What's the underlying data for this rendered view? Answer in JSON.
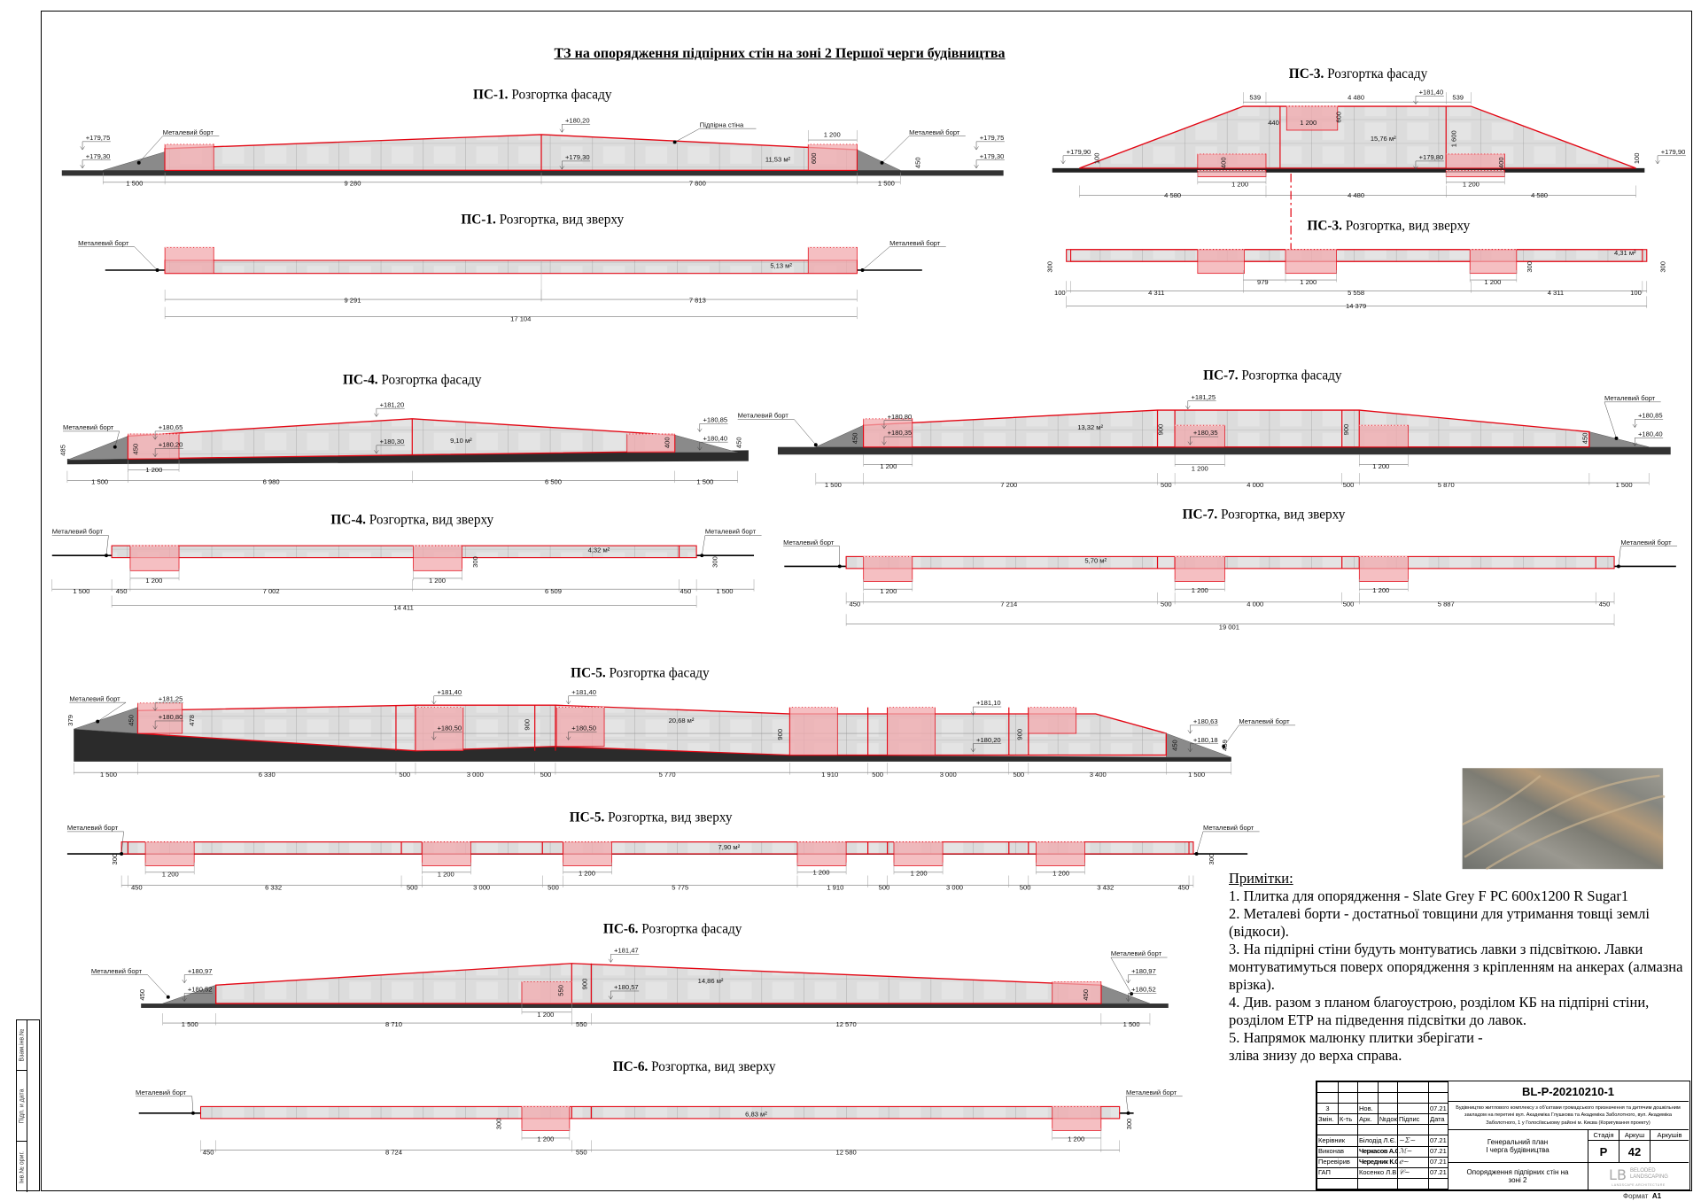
{
  "sheet": {
    "title": "ТЗ на опорядження підпірних стін на зоні 2 Першої черги будівництва",
    "side_stamps": [
      "Взам.інв.№",
      "Підп. и дата",
      "Інв.№ ориг."
    ],
    "format_label": "Формат",
    "format_value": "A1"
  },
  "colors": {
    "outline_red": "#e30613",
    "highlight_pink": "#f2a9ad",
    "tile_grey": "#dcdcdc",
    "ground_dark": "#2b2b2b",
    "slope_grey": "#8a8a8a"
  },
  "drawings": [
    {
      "title_bold": "ПС-1.",
      "title_rest": " Розгортка фасаду",
      "labels": [
        "+179,75",
        "+179,30",
        "Металевий борт",
        "+180,20",
        "+179,30",
        "Підпірна стіна",
        "1 200",
        "Металевий борт",
        "+179,75",
        "+179,30",
        "11,53 м²",
        "600",
        "450",
        "1 500",
        "9 280",
        "7 800",
        "1 500"
      ]
    },
    {
      "title_bold": "ПС-1.",
      "title_rest": " Розгортка, вид зверху",
      "labels": [
        "Металевий борт",
        "Металевий борт",
        "5,13 м²",
        "9 291",
        "7 813",
        "17 104"
      ]
    },
    {
      "title_bold": "ПС-3.",
      "title_rest": " Розгортка фасаду",
      "labels": [
        "539",
        "4 480",
        "+181,40",
        "539",
        "440",
        "1 200",
        "600",
        "15,76 м²",
        "1 600",
        "+179,90",
        "100",
        "400",
        "+179,80",
        "400",
        "100",
        "+179,90",
        "1 200",
        "1 200",
        "4 580",
        "4 480",
        "4 580"
      ]
    },
    {
      "title_bold": "ПС-3.",
      "title_rest": " Розгортка, вид зверху",
      "labels": [
        "300",
        "4,31 м²",
        "300",
        "300",
        "979",
        "1 200",
        "1 200",
        "100",
        "4 311",
        "5 558",
        "4 311",
        "100",
        "14 379"
      ]
    },
    {
      "title_bold": "ПС-4.",
      "title_rest": " Розгортка фасаду",
      "labels": [
        "Металевий борт",
        "485",
        "450",
        "+180,65",
        "+180,20",
        "+181,20",
        "+180,30",
        "9,10 м²",
        "400",
        "+180,85",
        "+180,40",
        "450",
        "1 200",
        "1 500",
        "6 980",
        "6 500",
        "1 500"
      ]
    },
    {
      "title_bold": "ПС-4.",
      "title_rest": " Розгортка, вид зверху",
      "labels": [
        "Металевий борт",
        "Металевий борт",
        "4,32 м²",
        "300",
        "300",
        "1 200",
        "1 200",
        "1 500",
        "450",
        "7 002",
        "6 509",
        "450",
        "1 500",
        "14 411"
      ]
    },
    {
      "title_bold": "ПС-7.",
      "title_rest": " Розгортка фасаду",
      "labels": [
        "Металевий борт",
        "+180,80",
        "+180,35",
        "+181,25",
        "13,32 м²",
        "900",
        "+180,35",
        "900",
        "450",
        "450",
        "Металевий борт",
        "+180,85",
        "+180,40",
        "1 200",
        "1 200",
        "1 200",
        "1 500",
        "7 200",
        "500",
        "4 000",
        "500",
        "5 870",
        "1 500"
      ]
    },
    {
      "title_bold": "ПС-7.",
      "title_rest": " Розгортка, вид зверху",
      "labels": [
        "Металевий борт",
        "Металевий борт",
        "5,70 м²",
        "1 200",
        "1 200",
        "1 200",
        "450",
        "7 214",
        "500",
        "4 000",
        "500",
        "5 887",
        "450",
        "19 001"
      ]
    },
    {
      "title_bold": "ПС-5.",
      "title_rest": " Розгортка фасаду",
      "labels": [
        "Металевий борт",
        "379",
        "450",
        "+181,25",
        "+180,80",
        "478",
        "+181,40",
        "+180,50",
        "900",
        "+181,40",
        "+180,50",
        "20,68 м²",
        "900",
        "+181,10",
        "+180,20",
        "900",
        "+180,63",
        "Металевий борт",
        "450",
        "+180,18",
        "459",
        "1 500",
        "6 330",
        "500",
        "3 000",
        "500",
        "5 770",
        "1 910",
        "500",
        "3 000",
        "500",
        "3 400",
        "1 500"
      ]
    },
    {
      "title_bold": "ПС-5.",
      "title_rest": " Розгортка, вид зверху",
      "labels": [
        "Металевий борт",
        "Металевий борт",
        "300",
        "300",
        "7,90 м²",
        "1 200",
        "1 200",
        "1 200",
        "1 200",
        "1 200",
        "1 200",
        "450",
        "6 332",
        "500",
        "3 000",
        "500",
        "5 775",
        "1 910",
        "500",
        "3 000",
        "500",
        "3 432",
        "450"
      ]
    },
    {
      "title_bold": "ПС-6.",
      "title_rest": " Розгортка фасаду",
      "labels": [
        "Металевий борт",
        "+180,97",
        "+180,52",
        "450",
        "+181,47",
        "550",
        "900",
        "+180,57",
        "14,86 м²",
        "450",
        "Металевий борт",
        "+180,97",
        "+180,52",
        "1 200",
        "1 500",
        "8 710",
        "550",
        "12 570",
        "1 500"
      ]
    },
    {
      "title_bold": "ПС-6.",
      "title_rest": " Розгортка, вид зверху",
      "labels": [
        "Металевий борт",
        "Металевий борт",
        "300",
        "300",
        "6,83 м²",
        "1 200",
        "1 200",
        "450",
        "8 724",
        "550",
        "12 580"
      ]
    }
  ],
  "notes": {
    "heading": "Примітки:",
    "items": [
      "1. Плитка для опорядження - Slate Grey F PC 600x1200 R Sugar1",
      "2. Металеві борти - достатньої товщини для утримання товщі землі (відкоси).",
      "3. На підпірні стіни будуть монтуватись лавки з підсвіткою. Лавки монтуватимуться поверх опорядження з кріпленням на анкерах (алмазна врізка).",
      "4. Див. разом з планом благоустрою, розділом КБ на підпірні стіни, розділом ЕТР на підведення підсвітки до лавок.",
      "5. Напрямок малюнку плитки зберігати -",
      "зліва знизу до верха справа."
    ]
  },
  "title_block": {
    "code": "BL-P-20210210-1",
    "project": "Будівництво житлового комплексу з об'єктами громадського призначення та дитячим дошкільним закладом на перетині вул. Академіка Глушкова та Академіка Заболотного, вул. Академіка Заболотного, 1 у Голосіївському районі м. Києва (Коригування проекту)",
    "revision_row": {
      "zmin": "3",
      "kt": "",
      "ark": "Нов.",
      "ndok": "",
      "pidpys": "",
      "data": "07.21"
    },
    "headers": [
      "Змін.",
      "К-ть",
      "Арк.",
      "№док",
      "Підпис",
      "Дата"
    ],
    "people": [
      {
        "role": "Керівник",
        "name": "Білодід Л.Є.",
        "date": "07.21"
      },
      {
        "role": "Виконав",
        "name": "Черкасов А.О.",
        "date": "07.21"
      },
      {
        "role": "Перевірив",
        "name": "Чередник К.О",
        "date": "07.21"
      },
      {
        "role": "ГАП",
        "name": "Косенко Л.В",
        "date": "07.21"
      }
    ],
    "section": "Генеральний план\nІ черга будівництва",
    "stage_header": "Стадія",
    "sheet_header": "Аркуш",
    "sheets_header": "Аркушів",
    "stage": "Р",
    "sheet": "42",
    "sheets": "",
    "drawing_name": "Опорядження підпірних стін на зоні 2",
    "logo_line1": "BELODED",
    "logo_line2": "LANDSCAPING",
    "logo_sub": "LANDSCAPE ARCHITECTURE"
  }
}
